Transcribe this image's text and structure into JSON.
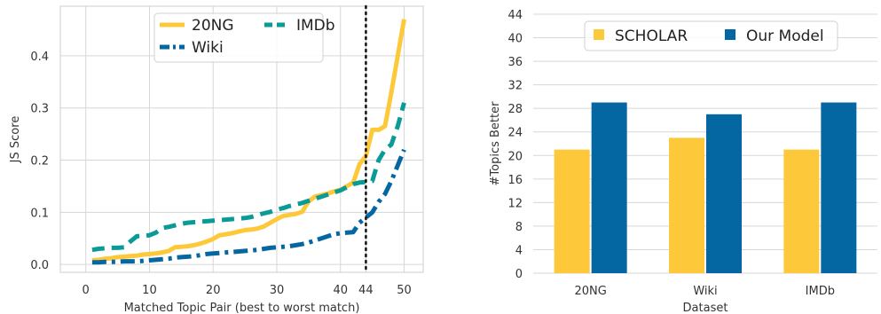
{
  "chart_data": [
    {
      "type": "line",
      "title": "",
      "xlabel": "Matched Topic Pair (best to worst match)",
      "ylabel": "JS Score",
      "xlim": [
        -4,
        53
      ],
      "ylim": [
        -0.015,
        0.495
      ],
      "xticks": [
        0,
        10,
        20,
        30,
        40,
        44,
        50
      ],
      "yticks": [
        0.0,
        0.1,
        0.2,
        0.3,
        0.4
      ],
      "ytick_labels": [
        "0.0",
        "0.1",
        "0.2",
        "0.3",
        "0.4"
      ],
      "grid": true,
      "legend": {
        "location": "top-center",
        "columns": 2
      },
      "vline": {
        "x": 44,
        "style": "dotted",
        "color": "#111111"
      },
      "series": [
        {
          "name": "20NG",
          "color": "#fdc93a",
          "dash": "solid",
          "x": [
            1,
            2,
            3,
            4,
            5,
            6,
            7,
            8,
            9,
            10,
            11,
            12,
            13,
            14,
            15,
            16,
            17,
            18,
            19,
            20,
            21,
            22,
            23,
            24,
            25,
            26,
            27,
            28,
            29,
            30,
            31,
            32,
            33,
            34,
            35,
            36,
            37,
            38,
            39,
            40,
            41,
            42,
            43,
            44,
            45,
            46,
            47,
            48,
            49,
            50
          ],
          "y": [
            0.008,
            0.009,
            0.011,
            0.012,
            0.014,
            0.015,
            0.016,
            0.017,
            0.019,
            0.02,
            0.021,
            0.023,
            0.026,
            0.033,
            0.034,
            0.035,
            0.037,
            0.04,
            0.044,
            0.049,
            0.056,
            0.058,
            0.06,
            0.063,
            0.066,
            0.067,
            0.069,
            0.073,
            0.08,
            0.087,
            0.093,
            0.095,
            0.097,
            0.101,
            0.121,
            0.13,
            0.133,
            0.136,
            0.14,
            0.143,
            0.15,
            0.157,
            0.192,
            0.208,
            0.258,
            0.258,
            0.265,
            0.33,
            0.4,
            0.47
          ]
        },
        {
          "name": "IMDb",
          "color": "#0a9b96",
          "dash": "dashed",
          "x": [
            1,
            2,
            3,
            4,
            5,
            6,
            7,
            8,
            9,
            10,
            11,
            12,
            13,
            14,
            15,
            16,
            17,
            18,
            19,
            20,
            21,
            22,
            23,
            24,
            25,
            26,
            27,
            28,
            29,
            30,
            31,
            32,
            33,
            34,
            35,
            36,
            37,
            38,
            39,
            40,
            41,
            42,
            43,
            44,
            45,
            46,
            47,
            48,
            49,
            50
          ],
          "y": [
            0.028,
            0.03,
            0.031,
            0.032,
            0.032,
            0.033,
            0.044,
            0.054,
            0.055,
            0.056,
            0.061,
            0.07,
            0.072,
            0.075,
            0.078,
            0.08,
            0.081,
            0.082,
            0.083,
            0.084,
            0.085,
            0.086,
            0.087,
            0.088,
            0.089,
            0.091,
            0.095,
            0.098,
            0.101,
            0.105,
            0.108,
            0.112,
            0.115,
            0.118,
            0.122,
            0.126,
            0.13,
            0.134,
            0.138,
            0.142,
            0.148,
            0.154,
            0.157,
            0.158,
            0.16,
            0.2,
            0.22,
            0.23,
            0.265,
            0.31
          ]
        },
        {
          "name": "Wiki",
          "color": "#0567a2",
          "dash": "dashdot",
          "x": [
            1,
            2,
            3,
            4,
            5,
            6,
            7,
            8,
            9,
            10,
            11,
            12,
            13,
            14,
            15,
            16,
            17,
            18,
            19,
            20,
            21,
            22,
            23,
            24,
            25,
            26,
            27,
            28,
            29,
            30,
            31,
            32,
            33,
            34,
            35,
            36,
            37,
            38,
            39,
            40,
            41,
            42,
            43,
            44,
            45,
            46,
            47,
            48,
            49,
            50
          ],
          "y": [
            0.004,
            0.004,
            0.005,
            0.005,
            0.005,
            0.006,
            0.006,
            0.006,
            0.007,
            0.008,
            0.009,
            0.01,
            0.011,
            0.013,
            0.014,
            0.015,
            0.016,
            0.018,
            0.02,
            0.021,
            0.022,
            0.023,
            0.024,
            0.025,
            0.026,
            0.027,
            0.028,
            0.03,
            0.032,
            0.033,
            0.034,
            0.035,
            0.037,
            0.039,
            0.042,
            0.046,
            0.05,
            0.054,
            0.058,
            0.06,
            0.061,
            0.062,
            0.08,
            0.09,
            0.1,
            0.12,
            0.135,
            0.16,
            0.19,
            0.22
          ]
        }
      ]
    },
    {
      "type": "bar",
      "title": "",
      "xlabel": "Dataset",
      "ylabel": "#Topics Better",
      "categories": [
        "20NG",
        "Wiki",
        "IMDb"
      ],
      "ylim": [
        0,
        44
      ],
      "yticks": [
        0,
        4,
        8,
        12,
        16,
        20,
        24,
        28,
        32,
        36,
        40,
        44
      ],
      "grid": true,
      "legend": {
        "location": "top-center",
        "columns": 2
      },
      "series": [
        {
          "name": "SCHOLAR",
          "color": "#fdc93a",
          "values": [
            21,
            23,
            21
          ]
        },
        {
          "name": "Our Model",
          "color": "#0567a2",
          "values": [
            29,
            27,
            29
          ]
        }
      ]
    }
  ]
}
